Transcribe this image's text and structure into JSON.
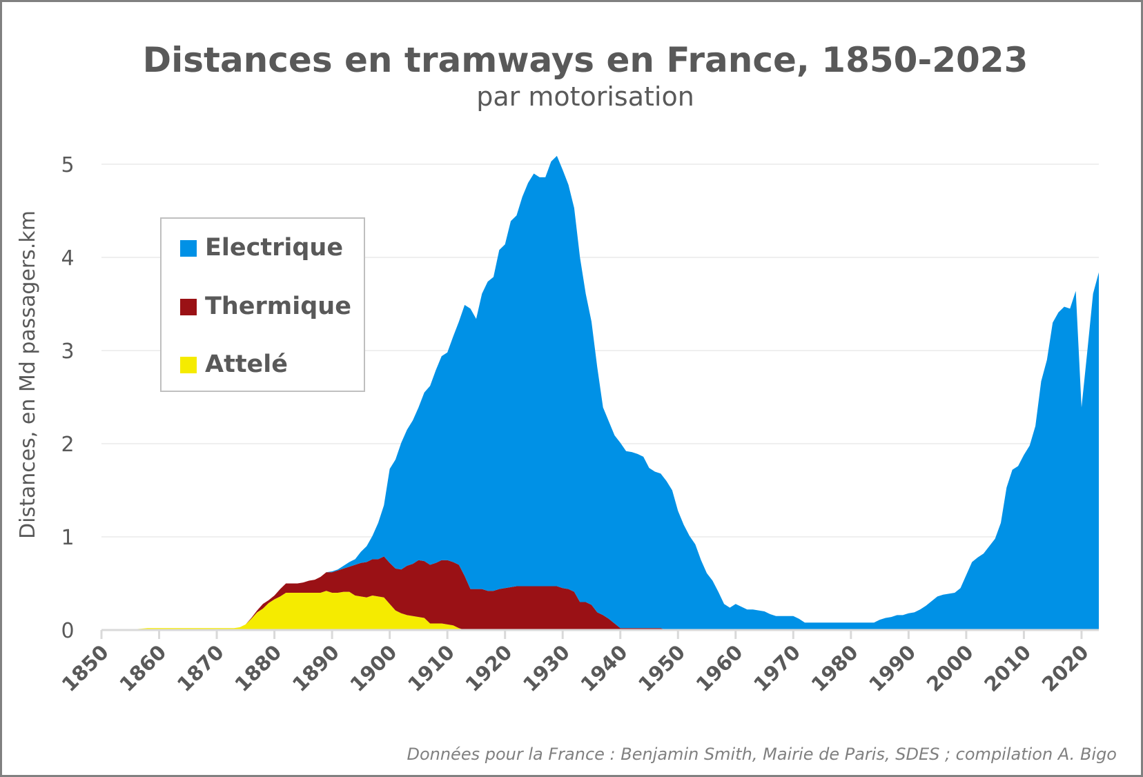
{
  "chart_data": {
    "type": "area",
    "stacked": true,
    "title": "Distances en tramways en France, 1850-2023",
    "subtitle": "par motorisation",
    "ylabel": "Distances, en Md passagers.km",
    "xlabel": "",
    "xlim": [
      1850,
      2023
    ],
    "ylim": [
      0,
      5
    ],
    "grid": true,
    "legend_position": "top-left",
    "y_ticks": [
      "0",
      "1",
      "2",
      "3",
      "4",
      "5"
    ],
    "x_ticks": [
      "1850",
      "1860",
      "1870",
      "1880",
      "1890",
      "1900",
      "1910",
      "1920",
      "1930",
      "1940",
      "1950",
      "1960",
      "1970",
      "1980",
      "1990",
      "2000",
      "2010",
      "2020"
    ],
    "footer": "Données pour la France : Benjamin Smith, Mairie de Paris, SDES ; compilation A. Bigo",
    "x_start": 1850,
    "x_end": 2023,
    "series": [
      {
        "name": "Attelé",
        "color": "#F5EB00",
        "values": [
          0,
          0,
          0,
          0,
          0,
          0.005,
          0.01,
          0.015,
          0.02,
          0.02,
          0.02,
          0.02,
          0.02,
          0.02,
          0.02,
          0.02,
          0.02,
          0.02,
          0.02,
          0.02,
          0.02,
          0.02,
          0.02,
          0.02,
          0.03,
          0.06,
          0.12,
          0.19,
          0.23,
          0.29,
          0.33,
          0.36,
          0.4,
          0.4,
          0.4,
          0.4,
          0.4,
          0.4,
          0.4,
          0.42,
          0.4,
          0.4,
          0.41,
          0.41,
          0.37,
          0.36,
          0.35,
          0.37,
          0.36,
          0.35,
          0.28,
          0.21,
          0.18,
          0.16,
          0.15,
          0.14,
          0.13,
          0.07,
          0.07,
          0.07,
          0.06,
          0.05,
          0.02,
          0,
          0,
          0,
          0,
          0,
          0,
          0,
          0,
          0,
          0,
          0,
          0,
          0,
          0,
          0,
          0,
          0,
          0,
          0,
          0,
          0,
          0,
          0,
          0,
          0,
          0,
          0,
          0,
          0,
          0,
          0,
          0,
          0,
          0,
          0,
          0,
          0,
          0,
          0,
          0,
          0,
          0,
          0,
          0,
          0,
          0,
          0,
          0,
          0,
          0,
          0,
          0,
          0,
          0,
          0,
          0,
          0,
          0,
          0,
          0,
          0,
          0,
          0,
          0,
          0,
          0,
          0,
          0,
          0,
          0,
          0,
          0,
          0,
          0,
          0,
          0,
          0,
          0,
          0,
          0,
          0,
          0,
          0,
          0,
          0,
          0,
          0,
          0,
          0,
          0,
          0,
          0,
          0,
          0,
          0,
          0,
          0,
          0,
          0,
          0,
          0,
          0,
          0,
          0,
          0,
          0,
          0,
          0,
          0,
          0,
          0
        ]
      },
      {
        "name": "Thermique",
        "color": "#9A1115",
        "values": [
          0,
          0,
          0,
          0,
          0,
          0,
          0,
          0,
          0,
          0,
          0,
          0,
          0,
          0,
          0,
          0,
          0,
          0,
          0,
          0,
          0,
          0,
          0,
          0,
          0,
          0,
          0.01,
          0.02,
          0.05,
          0.03,
          0.04,
          0.08,
          0.1,
          0.1,
          0.1,
          0.11,
          0.13,
          0.14,
          0.17,
          0.2,
          0.22,
          0.24,
          0.25,
          0.27,
          0.33,
          0.36,
          0.38,
          0.39,
          0.4,
          0.44,
          0.44,
          0.45,
          0.47,
          0.53,
          0.56,
          0.61,
          0.61,
          0.63,
          0.65,
          0.68,
          0.69,
          0.68,
          0.68,
          0.58,
          0.44,
          0.44,
          0.44,
          0.42,
          0.42,
          0.44,
          0.45,
          0.46,
          0.47,
          0.47,
          0.47,
          0.47,
          0.47,
          0.47,
          0.47,
          0.47,
          0.45,
          0.44,
          0.41,
          0.3,
          0.3,
          0.27,
          0.19,
          0.16,
          0.12,
          0.07,
          0.02,
          0.02,
          0.02,
          0.02,
          0.02,
          0.02,
          0.02,
          0.02,
          0,
          0,
          0,
          0,
          0,
          0,
          0,
          0,
          0,
          0,
          0,
          0,
          0,
          0,
          0,
          0,
          0,
          0,
          0,
          0,
          0,
          0,
          0,
          0,
          0,
          0,
          0,
          0,
          0,
          0,
          0,
          0,
          0,
          0,
          0,
          0,
          0,
          0,
          0,
          0,
          0,
          0,
          0,
          0,
          0,
          0,
          0,
          0,
          0,
          0,
          0,
          0,
          0,
          0,
          0,
          0,
          0,
          0,
          0,
          0,
          0,
          0,
          0,
          0,
          0,
          0,
          0,
          0,
          0,
          0,
          0,
          0,
          0,
          0,
          0,
          0
        ]
      },
      {
        "name": "Electrique",
        "color": "#0091E6",
        "values": [
          0,
          0,
          0,
          0,
          0,
          0,
          0,
          0,
          0,
          0,
          0,
          0,
          0,
          0,
          0,
          0,
          0,
          0,
          0,
          0,
          0,
          0,
          0,
          0,
          0,
          0,
          0,
          0,
          0,
          0,
          0,
          0,
          0,
          0,
          0,
          0,
          0,
          0,
          0,
          0,
          0.01,
          0.01,
          0.03,
          0.05,
          0.06,
          0.12,
          0.17,
          0.25,
          0.39,
          0.55,
          1.01,
          1.17,
          1.36,
          1.46,
          1.54,
          1.64,
          1.81,
          1.92,
          2.07,
          2.19,
          2.23,
          2.42,
          2.61,
          2.91,
          3.01,
          2.9,
          3.17,
          3.32,
          3.37,
          3.64,
          3.69,
          3.93,
          3.98,
          4.18,
          4.33,
          4.43,
          4.39,
          4.39,
          4.56,
          4.62,
          4.49,
          4.34,
          4.12,
          3.7,
          3.31,
          3.04,
          2.63,
          2.23,
          2.12,
          2.02,
          1.99,
          1.9,
          1.89,
          1.87,
          1.84,
          1.72,
          1.68,
          1.66,
          1.6,
          1.5,
          1.28,
          1.13,
          1.01,
          0.92,
          0.75,
          0.61,
          0.53,
          0.41,
          0.28,
          0.24,
          0.28,
          0.25,
          0.22,
          0.22,
          0.21,
          0.2,
          0.17,
          0.15,
          0.15,
          0.15,
          0.15,
          0.12,
          0.08,
          0.08,
          0.08,
          0.08,
          0.08,
          0.08,
          0.08,
          0.08,
          0.08,
          0.08,
          0.08,
          0.08,
          0.08,
          0.11,
          0.13,
          0.14,
          0.16,
          0.16,
          0.18,
          0.19,
          0.22,
          0.26,
          0.31,
          0.36,
          0.38,
          0.39,
          0.4,
          0.45,
          0.59,
          0.73,
          0.78,
          0.82,
          0.9,
          0.98,
          1.15,
          1.53,
          1.72,
          1.76,
          1.88,
          1.98,
          2.19,
          2.67,
          2.9,
          3.3,
          3.41,
          3.47,
          3.45,
          3.64,
          2.39,
          2.99,
          3.61,
          3.84
        ]
      }
    ],
    "legend_order": [
      "Electrique",
      "Thermique",
      "Attelé"
    ]
  },
  "colors": {
    "text": "#595959",
    "grid": "#EFEFEF",
    "axis": "#D9D9D9",
    "border": "#808080",
    "legend_border": "#BFBFBF",
    "footer": "#808080"
  }
}
